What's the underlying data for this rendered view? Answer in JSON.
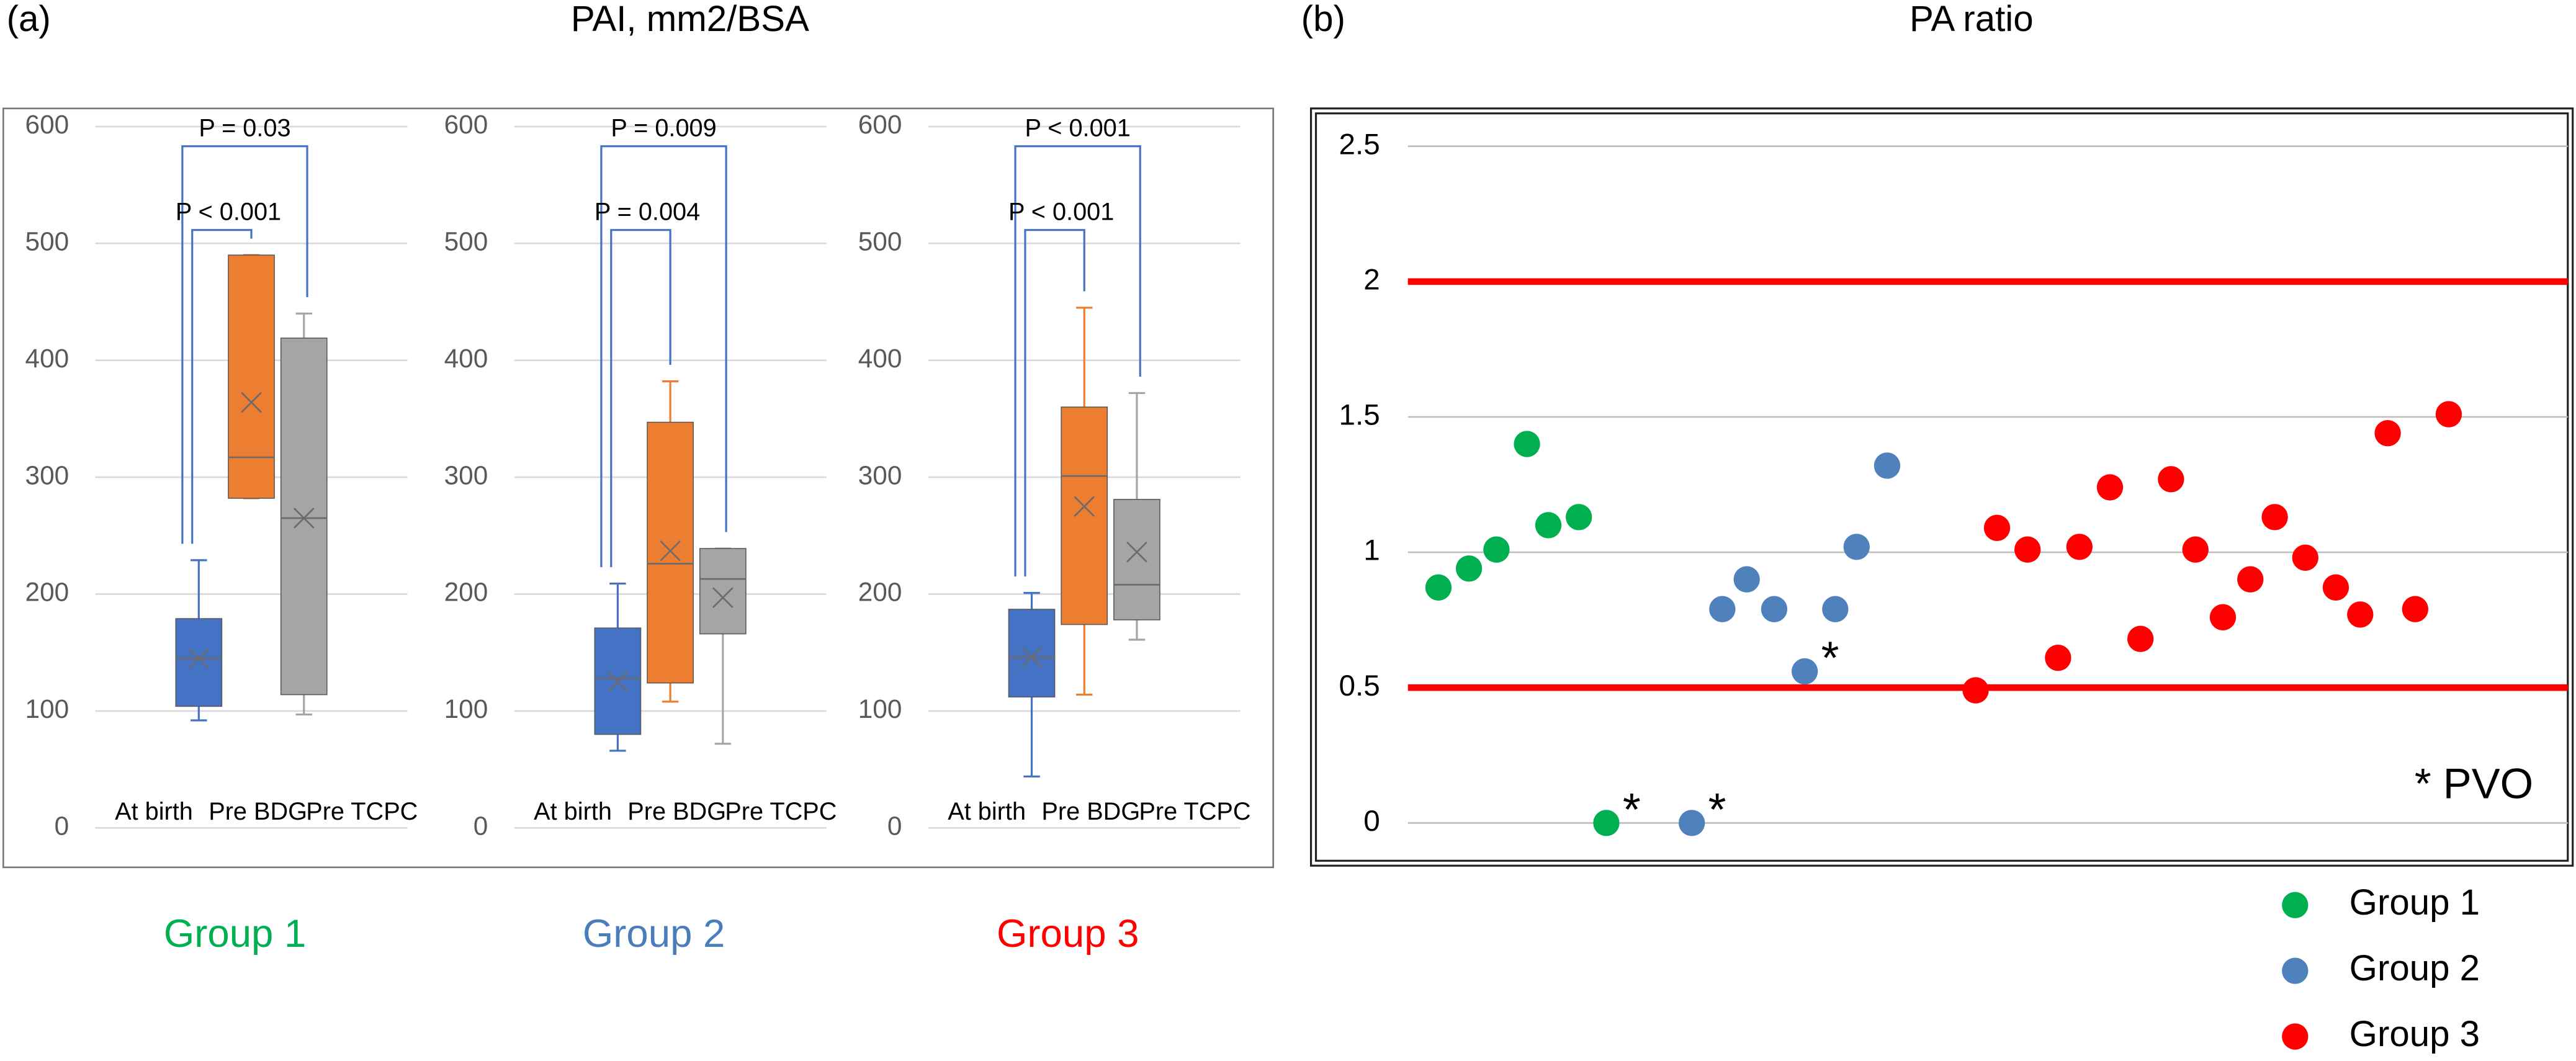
{
  "panels": [
    {
      "label": "(a)",
      "title": "PAI, mm2/BSA"
    },
    {
      "label": "(b)",
      "title": "PA ratio"
    }
  ],
  "chart_data": [
    {
      "type": "box",
      "caption": "Group 1",
      "caption_color": "#00b050",
      "categories": [
        "At birth",
        "Pre BDG",
        "Pre TCPC"
      ],
      "boxes": [
        {
          "min": 92,
          "q1": 104,
          "median": 145,
          "q3": 179,
          "max": 229,
          "mean": 145,
          "color": "#4472c4"
        },
        {
          "min": 282,
          "q1": 282,
          "median": 317,
          "q3": 490,
          "max": 490,
          "mean": 364,
          "color": "#ed7d31"
        },
        {
          "min": 97,
          "q1": 114,
          "median": 265,
          "q3": 419,
          "max": 440,
          "mean": 265,
          "color": "#a5a5a5"
        }
      ],
      "ylim": [
        0,
        600
      ],
      "yticks": [
        0,
        100,
        200,
        300,
        400,
        500,
        600
      ],
      "grid": true,
      "annotations": [
        {
          "text": "P = 0.03",
          "between": [
            0,
            2
          ]
        },
        {
          "text": "P < 0.001",
          "between": [
            0,
            1
          ]
        }
      ]
    },
    {
      "type": "box",
      "caption": "Group 2",
      "caption_color": "#4a7ebb",
      "categories": [
        "At birth",
        "Pre BDG",
        "Pre TCPC"
      ],
      "boxes": [
        {
          "min": 66,
          "q1": 80,
          "median": 128,
          "q3": 171,
          "max": 209,
          "mean": 125,
          "color": "#4472c4"
        },
        {
          "min": 108,
          "q1": 124,
          "median": 226,
          "q3": 347,
          "max": 382,
          "mean": 237,
          "color": "#ed7d31"
        },
        {
          "min": 72,
          "q1": 166,
          "median": 213,
          "q3": 239,
          "max": 239,
          "mean": 197,
          "color": "#a5a5a5"
        }
      ],
      "ylim": [
        0,
        600
      ],
      "yticks": [
        0,
        100,
        200,
        300,
        400,
        500,
        600
      ],
      "grid": true,
      "annotations": [
        {
          "text": "P = 0.009",
          "between": [
            0,
            2
          ]
        },
        {
          "text": "P = 0.004",
          "between": [
            0,
            1
          ]
        }
      ]
    },
    {
      "type": "box",
      "caption": "Group 3",
      "caption_color": "#ff0000",
      "categories": [
        "At birth",
        "Pre BDG",
        "Pre TCPC"
      ],
      "boxes": [
        {
          "min": 44,
          "q1": 112,
          "median": 146,
          "q3": 187,
          "max": 201,
          "mean": 146,
          "color": "#4472c4"
        },
        {
          "min": 114,
          "q1": 174,
          "median": 301,
          "q3": 360,
          "max": 445,
          "mean": 275,
          "color": "#ed7d31"
        },
        {
          "min": 161,
          "q1": 178,
          "median": 208,
          "q3": 281,
          "max": 372,
          "mean": 236,
          "color": "#a5a5a5"
        }
      ],
      "ylim": [
        0,
        600
      ],
      "yticks": [
        0,
        100,
        200,
        300,
        400,
        500,
        600
      ],
      "grid": true,
      "annotations": [
        {
          "text": "P < 0.001",
          "between": [
            0,
            2
          ]
        },
        {
          "text": "P < 0.001",
          "between": [
            0,
            1
          ]
        }
      ]
    },
    {
      "type": "scatter",
      "xlim": [
        0,
        38
      ],
      "ylim": [
        0,
        2.5
      ],
      "yticks": [
        0,
        0.5,
        1,
        1.5,
        2,
        2.5
      ],
      "grid": true,
      "hlines": [
        2,
        0.5
      ],
      "hline_color": "#ff0000",
      "legend": "below-right",
      "note": "* PVO",
      "series": [
        {
          "name": "Group 1",
          "color": "#00b050",
          "x": [
            1.0,
            2.0,
            2.9,
            3.9,
            4.6,
            5.6,
            6.5
          ],
          "values": [
            0.87,
            0.94,
            1.01,
            1.4,
            1.1,
            1.13,
            0
          ]
        },
        {
          "name": "Group 2",
          "color": "#4f81bd",
          "x": [
            9.3,
            10.3,
            11.1,
            12.0,
            13.0,
            14.0,
            14.7,
            15.7
          ],
          "values": [
            0,
            0.79,
            0.9,
            0.79,
            0.56,
            0.79,
            1.02,
            1.32
          ]
        },
        {
          "name": "Group 3",
          "color": "#ff0000",
          "x": [
            18.6,
            19.3,
            20.3,
            21.3,
            22.0,
            23.0,
            24.0,
            25.0,
            25.8,
            26.7,
            27.6,
            28.4,
            29.4,
            30.4,
            31.2,
            32.1,
            33.0,
            34.1
          ],
          "values": [
            0.49,
            1.09,
            1.01,
            0.61,
            1.02,
            1.24,
            0.68,
            1.27,
            1.01,
            0.76,
            0.9,
            1.13,
            0.98,
            0.87,
            0.77,
            1.44,
            0.79,
            1.51
          ]
        }
      ],
      "annotations": [
        {
          "text": "*",
          "x": 6.5,
          "y": 0
        },
        {
          "text": "*",
          "x": 9.3,
          "y": 0
        },
        {
          "text": "*",
          "x": 13.0,
          "y": 0.56
        }
      ]
    }
  ]
}
